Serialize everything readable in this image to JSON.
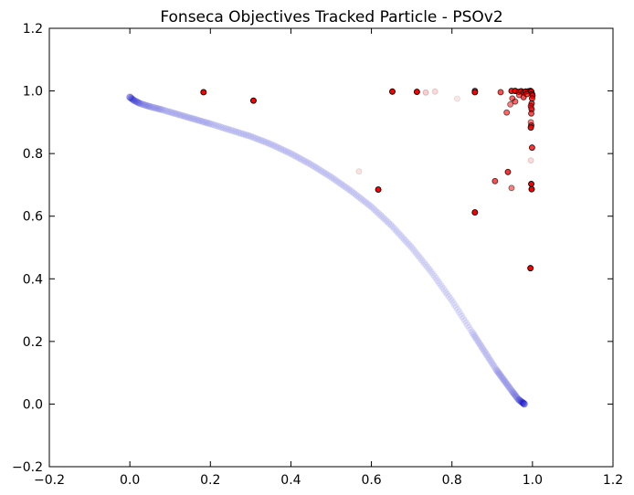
{
  "chart_data": {
    "type": "scatter",
    "title": "Fonseca Objectives Tracked Particle - PSOv2",
    "xlabel": "",
    "ylabel": "",
    "xlim": [
      -0.2,
      1.2
    ],
    "ylim": [
      -0.2,
      1.2
    ],
    "xticks": [
      -0.2,
      0.0,
      0.2,
      0.4,
      0.6,
      0.8,
      1.0,
      1.2
    ],
    "yticks": [
      -0.2,
      0.0,
      0.2,
      0.4,
      0.6,
      0.8,
      1.0,
      1.2
    ],
    "xtick_labels": [
      "−0.2",
      "0.0",
      "0.2",
      "0.4",
      "0.6",
      "0.8",
      "1.0",
      "1.2"
    ],
    "ytick_labels": [
      "−0.2",
      "0.0",
      "0.2",
      "0.4",
      "0.6",
      "0.8",
      "1.0",
      "1.2"
    ],
    "grid": false,
    "legend": "none",
    "series": [
      {
        "color": "#0000cc",
        "opacity": 0.06,
        "marker": "circle",
        "kind": "pareto-front",
        "x": [
          0.0,
          0.01,
          0.025,
          0.05,
          0.08,
          0.12,
          0.16,
          0.2,
          0.25,
          0.3,
          0.35,
          0.4,
          0.45,
          0.5,
          0.55,
          0.6,
          0.65,
          0.7,
          0.75,
          0.8,
          0.85,
          0.88,
          0.91,
          0.93,
          0.95,
          0.965,
          0.975,
          0.98
        ],
        "y": [
          0.98,
          0.97,
          0.96,
          0.95,
          0.94,
          0.925,
          0.91,
          0.895,
          0.875,
          0.855,
          0.83,
          0.8,
          0.765,
          0.725,
          0.68,
          0.63,
          0.57,
          0.5,
          0.42,
          0.33,
          0.23,
          0.17,
          0.11,
          0.075,
          0.04,
          0.015,
          0.005,
          0.0
        ]
      },
      {
        "color": "#ff0000",
        "edgecolor": "#000000",
        "marker": "circle",
        "kind": "tracked-particle",
        "x": [
          0.183,
          0.307,
          0.652,
          0.713,
          0.857,
          0.857,
          0.921,
          0.948,
          0.957,
          0.966,
          0.972,
          0.978,
          0.983,
          0.99,
          0.995,
          0.997,
          0.999,
          1.0,
          0.999,
          0.998,
          0.996,
          0.998,
          0.997,
          0.997,
          0.996,
          0.999,
          0.997,
          0.998,
          0.936,
          0.945,
          0.95,
          0.957,
          0.967,
          0.978,
          0.986,
          0.939,
          0.907,
          0.948,
          0.617,
          0.857,
          0.995,
          0.996,
          0.997,
          0.735,
          0.758,
          0.813,
          0.569,
          0.996
        ],
        "y": [
          0.996,
          0.969,
          0.998,
          0.997,
          1.0,
          0.996,
          0.996,
          1.0,
          1.0,
          0.997,
          0.999,
          0.995,
          0.998,
          0.999,
          1.0,
          0.998,
          0.99,
          0.985,
          0.976,
          0.96,
          0.952,
          0.941,
          0.928,
          0.89,
          0.883,
          0.819,
          0.703,
          0.686,
          0.931,
          0.957,
          0.976,
          0.966,
          0.987,
          0.98,
          0.99,
          0.741,
          0.712,
          0.69,
          0.685,
          0.612,
          0.434,
          0.778,
          0.946,
          0.995,
          0.998,
          0.975,
          0.743,
          0.9
        ],
        "alpha": [
          1.0,
          1.0,
          1.0,
          1.0,
          0.8,
          1.0,
          0.7,
          0.9,
          1.0,
          0.8,
          1.0,
          0.9,
          1.0,
          0.9,
          1.0,
          1.0,
          0.9,
          0.9,
          0.8,
          0.8,
          0.7,
          0.7,
          0.7,
          0.8,
          0.9,
          0.8,
          1.0,
          1.0,
          0.6,
          0.5,
          0.6,
          0.6,
          0.6,
          0.7,
          0.7,
          0.8,
          0.7,
          0.5,
          1.0,
          1.0,
          1.0,
          0.15,
          0.4,
          0.2,
          0.15,
          0.1,
          0.12,
          0.5
        ]
      }
    ]
  }
}
